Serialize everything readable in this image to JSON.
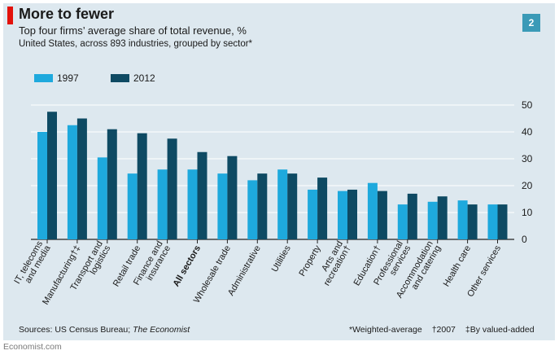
{
  "header": {
    "title": "More to fewer",
    "subtitle": "Top four firms’ average share of total revenue, %",
    "subtitle2": "United States, across 893 industries, grouped by sector*",
    "badge": "2"
  },
  "colors": {
    "series1997": "#1ea9dd",
    "series2012": "#0e4a63",
    "background": "#dde8ef",
    "accent": "#e3120b"
  },
  "footer": {
    "source_prefix": "Sources: US Census Bureau; ",
    "source_italic": "The Economist",
    "note1": "*Weighted-average",
    "note2": "†2007",
    "note3": "‡By valued-added",
    "site": "Economist.com"
  },
  "chart_data": {
    "type": "bar",
    "ylim": [
      0,
      50
    ],
    "yticks": [
      0,
      10,
      20,
      30,
      40,
      50
    ],
    "grid": true,
    "legend_position": "top-left",
    "categories": [
      [
        "IT, telecoms",
        "and media"
      ],
      [
        "Manufacturing†‡"
      ],
      [
        "Transport and",
        "logistics"
      ],
      [
        "Retail trade"
      ],
      [
        "Finance and",
        "insurance"
      ],
      [
        "All sectors"
      ],
      [
        "Wholesale trade"
      ],
      [
        "Administrative"
      ],
      [
        "Utilities"
      ],
      [
        "Property"
      ],
      [
        "Arts and",
        "recreation†"
      ],
      [
        "Education†"
      ],
      [
        "Professional",
        "services"
      ],
      [
        "Accommodation",
        "and catering"
      ],
      [
        "Health care"
      ],
      [
        "Other services"
      ]
    ],
    "bold_category_index": 5,
    "series": [
      {
        "name": "1997",
        "values": [
          40,
          42.5,
          30.5,
          24.5,
          26,
          26,
          24.5,
          22,
          26,
          18.5,
          18,
          21,
          13,
          14,
          14.5,
          13
        ]
      },
      {
        "name": "2012",
        "values": [
          47.5,
          45,
          41,
          39.5,
          37.5,
          32.5,
          31,
          24.5,
          24.5,
          23,
          18.5,
          18,
          17,
          16,
          13,
          13
        ]
      }
    ]
  }
}
